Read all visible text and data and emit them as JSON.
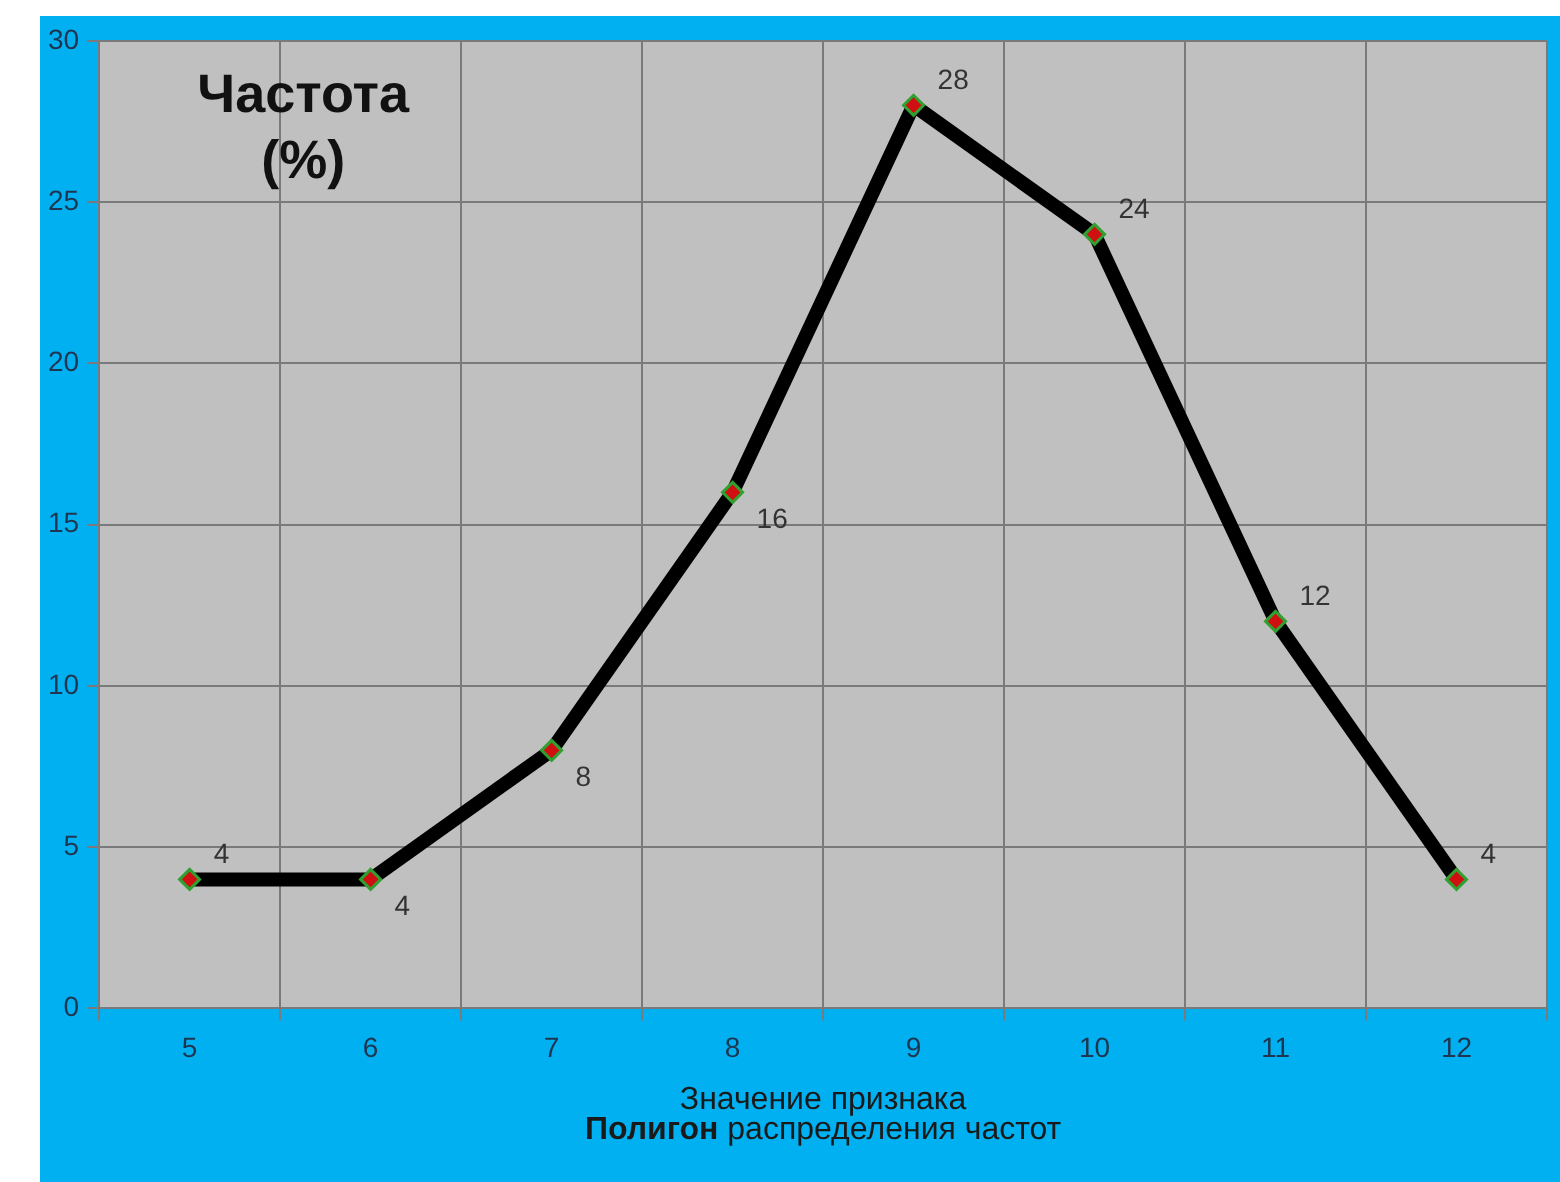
{
  "chart_data": {
    "type": "line",
    "title": "Полигон распределения частот",
    "xlabel": "Значение признака",
    "ylabel": "Частота (%)",
    "categories": [
      "5",
      "6",
      "7",
      "8",
      "9",
      "10",
      "11",
      "12"
    ],
    "series": [
      {
        "color": "#000000",
        "values": [
          4,
          4,
          8,
          16,
          28,
          24,
          12,
          4
        ]
      }
    ],
    "ylim": [
      0,
      30
    ],
    "yticks": [
      0,
      5,
      10,
      15,
      20,
      25,
      30
    ],
    "grid": true,
    "marker": "diamond",
    "line_style": "solid",
    "data_labels": true,
    "legend": false
  }
}
